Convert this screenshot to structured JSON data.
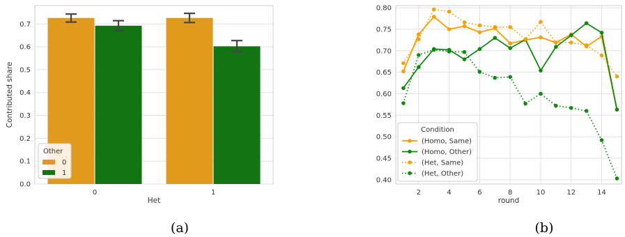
{
  "chart_data": [
    {
      "panel": "(a)",
      "type": "bar",
      "categories": [
        "0",
        "1"
      ],
      "xlabel": "Het",
      "ylabel": "Contributed share",
      "ylim": [
        0,
        0.78
      ],
      "yticks": [
        "0.0",
        "0.1",
        "0.2",
        "0.3",
        "0.4",
        "0.5",
        "0.6",
        "0.7"
      ],
      "grid": true,
      "legend_title": "Other",
      "legend_position": "bottom-left",
      "series": [
        {
          "name": "0",
          "color": "#e09b1f",
          "values": [
            0.726,
            0.726
          ],
          "err_low": [
            0.708,
            0.706
          ],
          "err_high": [
            0.743,
            0.746
          ]
        },
        {
          "name": "1",
          "color": "#137413",
          "values": [
            0.692,
            0.602
          ],
          "err_low": [
            0.671,
            0.578
          ],
          "err_high": [
            0.714,
            0.627
          ]
        }
      ]
    },
    {
      "panel": "(b)",
      "type": "line",
      "x": [
        1,
        2,
        3,
        4,
        5,
        6,
        7,
        8,
        9,
        10,
        11,
        12,
        13,
        14,
        15
      ],
      "xlabel": "round",
      "ylabel": "",
      "xlim": [
        0.5,
        15.3
      ],
      "ylim": [
        0.39,
        0.805
      ],
      "xticks": [
        "2",
        "4",
        "6",
        "8",
        "10",
        "12",
        "14"
      ],
      "yticks": [
        "0.40",
        "0.45",
        "0.50",
        "0.55",
        "0.60",
        "0.65",
        "0.70",
        "0.75",
        "0.80"
      ],
      "grid": true,
      "legend_title": "Condition",
      "legend_position": "bottom-left",
      "series": [
        {
          "name": "(Homo, Same)",
          "color": "#f5a100",
          "style": "solid",
          "values": [
            0.652,
            0.738,
            0.779,
            0.75,
            0.757,
            0.743,
            0.752,
            0.717,
            0.725,
            0.731,
            0.719,
            0.738,
            0.71,
            0.733,
            0.563
          ]
        },
        {
          "name": "(Homo, Other)",
          "color": "#128812",
          "style": "solid",
          "values": [
            0.613,
            0.662,
            0.704,
            0.702,
            0.68,
            0.704,
            0.73,
            0.706,
            0.726,
            0.654,
            0.709,
            0.736,
            0.764,
            0.742,
            0.563
          ]
        },
        {
          "name": "(Het, Same)",
          "color": "#f5a100",
          "style": "dotted",
          "values": [
            0.671,
            0.727,
            0.796,
            0.791,
            0.766,
            0.759,
            0.755,
            0.755,
            0.727,
            0.767,
            0.719,
            0.719,
            0.713,
            0.689,
            0.64
          ]
        },
        {
          "name": "(Het, Other)",
          "color": "#128812",
          "style": "dotted",
          "values": [
            0.578,
            0.69,
            0.702,
            0.698,
            0.697,
            0.651,
            0.637,
            0.639,
            0.577,
            0.6,
            0.572,
            0.567,
            0.56,
            0.492,
            0.403
          ]
        }
      ]
    }
  ],
  "captions": [
    "(a)",
    "(b)"
  ]
}
